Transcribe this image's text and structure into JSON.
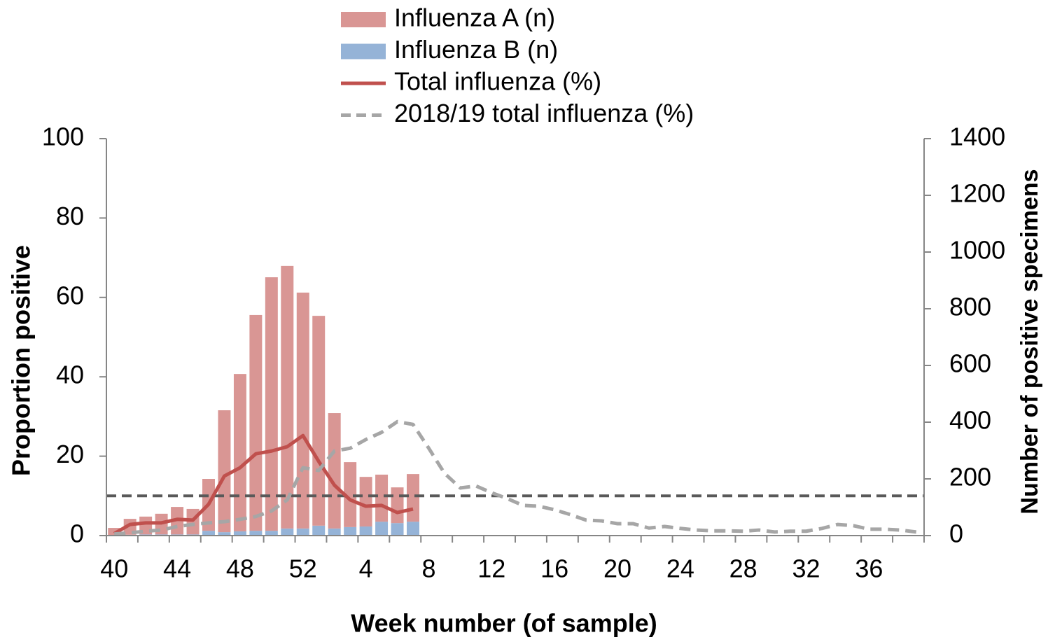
{
  "chart_data": {
    "type": "bar",
    "xlabel": "Week number (of sample)",
    "ylabel": "Proportion positive",
    "y2label": "Number of positive specimens",
    "categories": [
      "40",
      null,
      null,
      null,
      "44",
      null,
      null,
      null,
      "48",
      null,
      null,
      null,
      "52",
      null,
      null,
      null,
      "4",
      null,
      null,
      null,
      "8",
      null,
      null,
      null,
      "12",
      null,
      null,
      null,
      "16",
      null,
      null,
      null,
      "20",
      null,
      null,
      null,
      "24",
      null,
      null,
      null,
      "28",
      null,
      null,
      null,
      "32",
      null,
      null,
      null,
      "36",
      null,
      null,
      null
    ],
    "ylim": [
      0,
      100
    ],
    "yticks": [
      0,
      20,
      40,
      60,
      80,
      100
    ],
    "y2lim": [
      0,
      1400
    ],
    "y2ticks": [
      0,
      200,
      400,
      600,
      800,
      1000,
      1200,
      1400
    ],
    "grid": false,
    "threshold": 10,
    "threshold_color": "#595959",
    "series": [
      {
        "name": "Influenza A (n)",
        "type": "bar",
        "axis": "y2",
        "color": "#d99694",
        "values": [
          25,
          56,
          63,
          73,
          97,
          90,
          183,
          430,
          555,
          761,
          894,
          926,
          832,
          740,
          407,
          229,
          175,
          166,
          126,
          168,
          null,
          null,
          null,
          null,
          null,
          null,
          null,
          null,
          null,
          null,
          null,
          null,
          null,
          null,
          null,
          null,
          null,
          null,
          null,
          null,
          null,
          null,
          null,
          null,
          null,
          null,
          null,
          null,
          null,
          null,
          null,
          null
        ]
      },
      {
        "name": "Influenza B (n)",
        "type": "bar",
        "axis": "y2",
        "color": "#95b3d7",
        "values": [
          2,
          3,
          4,
          4,
          4,
          4,
          17,
          12,
          15,
          17,
          17,
          25,
          25,
          35,
          25,
          30,
          32,
          49,
          44,
          49,
          null,
          null,
          null,
          null,
          null,
          null,
          null,
          null,
          null,
          null,
          null,
          null,
          null,
          null,
          null,
          null,
          null,
          null,
          null,
          null,
          null,
          null,
          null,
          null,
          null,
          null,
          null,
          null,
          null,
          null,
          null,
          null
        ]
      },
      {
        "name": "Total influenza (%)",
        "type": "line",
        "color": "#c0504d",
        "dashed": false,
        "values": [
          0.5,
          2.8,
          3.2,
          3.2,
          4.1,
          3.9,
          7.9,
          15,
          17.1,
          20.6,
          21.3,
          22.4,
          25.2,
          18.7,
          12.7,
          9.0,
          7.4,
          7.6,
          5.8,
          6.7,
          null,
          null,
          null,
          null,
          null,
          null,
          null,
          null,
          null,
          null,
          null,
          null,
          null,
          null,
          null,
          null,
          null,
          null,
          null,
          null,
          null,
          null,
          null,
          null,
          null,
          null,
          null,
          null,
          null,
          null,
          null,
          null
        ]
      },
      {
        "name": "2018/19 total influenza (%)",
        "type": "line",
        "color": "#a6a6a6",
        "dashed": true,
        "values": [
          0.4,
          0.7,
          1.1,
          1.4,
          2.3,
          2.8,
          3.2,
          3.5,
          4.1,
          4.8,
          6.2,
          9,
          17.1,
          16.4,
          21.3,
          22,
          24.2,
          26,
          28.7,
          28,
          22,
          15.7,
          12,
          12.5,
          10.8,
          9.3,
          7.6,
          7.4,
          6.5,
          5.3,
          3.9,
          3.7,
          3,
          3,
          1.9,
          2.3,
          1.8,
          1.4,
          1.2,
          1.2,
          1.1,
          1.4,
          0.9,
          1.1,
          1.1,
          1.8,
          2.8,
          2.5,
          1.6,
          1.6,
          1.4,
          0.9
        ]
      }
    ]
  }
}
